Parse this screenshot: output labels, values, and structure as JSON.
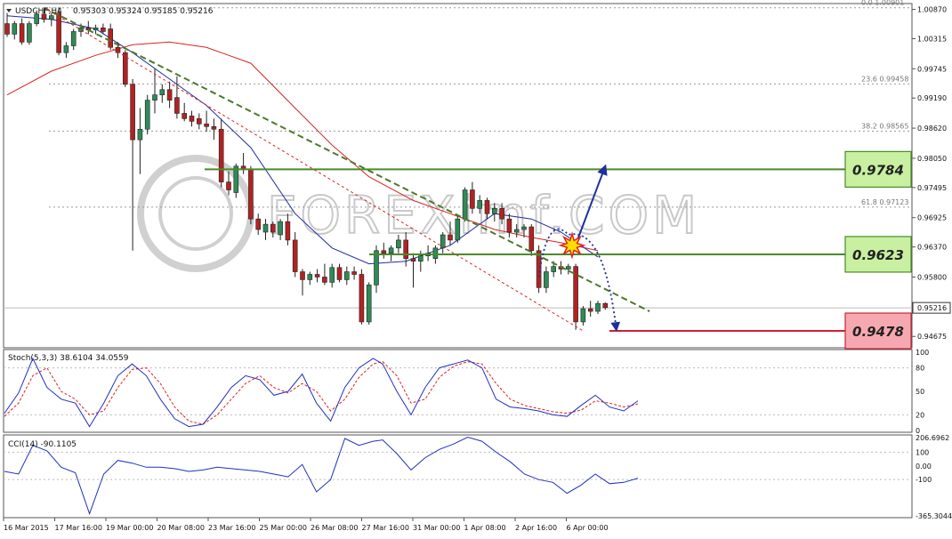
{
  "header": {
    "symbol": "USDCHF,H4",
    "ohlc": "0.95303 0.95324 0.95185 0.95216"
  },
  "colors": {
    "background": "#ffffff",
    "bull_candle": "#2e8b57",
    "bear_candle": "#b22222",
    "ma_fast": "#1f2f9e",
    "ma_slow": "#dd2222",
    "trendline": "#4a7a2a",
    "level_green": "#4a8a2a",
    "level_red": "#cc2233",
    "label_green_fill": "#c8f0a0",
    "label_red_fill": "#f6a8b0",
    "forecast_arrow": "#1d2f9c",
    "stoch_main": "#2030c0",
    "stoch_signal": "#dd2222",
    "cci_line": "#2030c0",
    "grid": "#bbbbbb",
    "watermark": "#999999"
  },
  "price_axis": {
    "ticks": [
      "1.00870",
      "1.00315",
      "0.99745",
      "0.99190",
      "0.98620",
      "0.98050",
      "0.97495",
      "0.96925",
      "0.96370",
      "0.95800",
      "0.95216",
      "0.94675"
    ],
    "current_price": "0.95216",
    "current_value": 0.95216
  },
  "fib_levels": [
    {
      "label": "0.0  1.00901",
      "value": 1.00901
    },
    {
      "label": "23.6  0.99458",
      "value": 0.99458
    },
    {
      "label": "38.2  0.98565",
      "value": 0.98565
    },
    {
      "label": "61.8  0.97123",
      "value": 0.97123
    }
  ],
  "levels": [
    {
      "label": "0.9784",
      "value": 0.9784,
      "kind": "resistance"
    },
    {
      "label": "0.9623",
      "value": 0.9623,
      "kind": "pivot"
    },
    {
      "label": "0.9478",
      "value": 0.9478,
      "kind": "support"
    }
  ],
  "time_axis": {
    "labels": [
      "16 Mar 2015",
      "17 Mar 16:00",
      "19 Mar 00:00",
      "20 Mar 08:00",
      "23 Mar 16:00",
      "25 Mar 00:00",
      "26 Mar 08:00",
      "27 Mar 16:00",
      "31 Mar 00:00",
      "1 Apr 08:00",
      "2 Apr 16:00",
      "6 Apr 00:00"
    ]
  },
  "watermark": {
    "text": "FOREXimf.COM"
  },
  "stoch": {
    "title": "Stoch(5,3,3) 38.6104 34.0559",
    "ticks": [
      "100",
      "80",
      "50",
      "20",
      "0"
    ]
  },
  "cci": {
    "title": "CCI(14) -90.1105",
    "ticks": [
      "206.6962",
      "100",
      "0.00",
      "-100",
      "-365.3044"
    ]
  },
  "chart_data": {
    "type": "candlestick",
    "title": "USDCHF,H4",
    "symbol": "USDCHF",
    "timeframe": "H4",
    "ylim": [
      0.9446,
      1.0098
    ],
    "x_labels": [
      "16 Mar 2015",
      "17 Mar 16:00",
      "19 Mar 00:00",
      "20 Mar 08:00",
      "23 Mar 16:00",
      "25 Mar 00:00",
      "26 Mar 08:00",
      "27 Mar 16:00",
      "31 Mar 00:00",
      "1 Apr 08:00",
      "2 Apr 16:00",
      "6 Apr 00:00"
    ],
    "candles": [
      [
        1.006,
        1.008,
        1.0035,
        1.004
      ],
      [
        1.004,
        1.0065,
        1.003,
        1.006
      ],
      [
        1.006,
        1.007,
        1.002,
        1.0025
      ],
      [
        1.0025,
        1.0065,
        1.002,
        1.006
      ],
      [
        1.006,
        1.0085,
        1.0055,
        1.0078
      ],
      [
        1.0078,
        1.009,
        1.0062,
        1.0068
      ],
      [
        1.0068,
        1.008,
        1.0055,
        1.0075
      ],
      [
        1.008,
        1.009,
        1.0,
        1.0005
      ],
      [
        1.0005,
        1.0025,
        0.9995,
        1.0018
      ],
      [
        1.0018,
        1.005,
        1.001,
        1.0045
      ],
      [
        1.0045,
        1.006,
        1.0035,
        1.0052
      ],
      [
        1.0052,
        1.0065,
        1.004,
        1.0048
      ],
      [
        1.0048,
        1.0058,
        1.004,
        1.0052
      ],
      [
        1.0052,
        1.006,
        1.004,
        1.0045
      ],
      [
        1.005,
        1.006,
        1.001,
        1.0015
      ],
      [
        1.0015,
        1.0025,
        0.9995,
        1.0005
      ],
      [
        1.0005,
        1.001,
        0.994,
        0.9945
      ],
      [
        0.9945,
        0.9955,
        0.963,
        0.984
      ],
      [
        0.984,
        0.99,
        0.9775,
        0.986
      ],
      [
        0.986,
        0.9925,
        0.985,
        0.9915
      ],
      [
        0.9915,
        0.9975,
        0.989,
        0.9925
      ],
      [
        0.9925,
        0.9945,
        0.991,
        0.9935
      ],
      [
        0.9935,
        0.995,
        0.99,
        0.9915
      ],
      [
        0.992,
        0.996,
        0.988,
        0.989
      ],
      [
        0.989,
        0.991,
        0.9875,
        0.988
      ],
      [
        0.9885,
        0.9895,
        0.9865,
        0.9875
      ],
      [
        0.988,
        0.989,
        0.986,
        0.987
      ],
      [
        0.987,
        0.9895,
        0.9855,
        0.9865
      ],
      [
        0.9865,
        0.988,
        0.984,
        0.986
      ],
      [
        0.986,
        0.988,
        0.975,
        0.976
      ],
      [
        0.976,
        0.978,
        0.9735,
        0.9745
      ],
      [
        0.974,
        0.9795,
        0.973,
        0.979
      ],
      [
        0.979,
        0.9815,
        0.9775,
        0.9785
      ],
      [
        0.9785,
        0.979,
        0.968,
        0.969
      ],
      [
        0.969,
        0.97,
        0.966,
        0.967
      ],
      [
        0.9665,
        0.969,
        0.965,
        0.968
      ],
      [
        0.968,
        0.9685,
        0.9655,
        0.9665
      ],
      [
        0.966,
        0.969,
        0.965,
        0.9685
      ],
      [
        0.9685,
        0.97,
        0.964,
        0.965
      ],
      [
        0.965,
        0.9665,
        0.958,
        0.959
      ],
      [
        0.959,
        0.9595,
        0.9545,
        0.9575
      ],
      [
        0.9575,
        0.959,
        0.9565,
        0.9585
      ],
      [
        0.9585,
        0.9595,
        0.957,
        0.958
      ],
      [
        0.958,
        0.9605,
        0.9565,
        0.957
      ],
      [
        0.957,
        0.9605,
        0.956,
        0.9598
      ],
      [
        0.9598,
        0.9605,
        0.957,
        0.9575
      ],
      [
        0.9575,
        0.96,
        0.9565,
        0.959
      ],
      [
        0.959,
        0.96,
        0.9575,
        0.9585
      ],
      [
        0.9585,
        0.9595,
        0.949,
        0.9495
      ],
      [
        0.9495,
        0.957,
        0.949,
        0.9565
      ],
      [
        0.9565,
        0.964,
        0.955,
        0.963
      ],
      [
        0.963,
        0.9645,
        0.9615,
        0.9625
      ],
      [
        0.9625,
        0.964,
        0.961,
        0.9635
      ],
      [
        0.9635,
        0.966,
        0.9625,
        0.965
      ],
      [
        0.965,
        0.9665,
        0.96,
        0.9615
      ],
      [
        0.9615,
        0.9625,
        0.956,
        0.961
      ],
      [
        0.961,
        0.963,
        0.959,
        0.962
      ],
      [
        0.962,
        0.964,
        0.961,
        0.9625
      ],
      [
        0.9615,
        0.964,
        0.9605,
        0.9635
      ],
      [
        0.9635,
        0.9665,
        0.9625,
        0.966
      ],
      [
        0.966,
        0.9685,
        0.964,
        0.965
      ],
      [
        0.965,
        0.9695,
        0.9645,
        0.969
      ],
      [
        0.969,
        0.975,
        0.9685,
        0.9745
      ],
      [
        0.9745,
        0.976,
        0.97,
        0.971
      ],
      [
        0.971,
        0.9735,
        0.97,
        0.9725
      ],
      [
        0.9725,
        0.973,
        0.969,
        0.97
      ],
      [
        0.97,
        0.972,
        0.9685,
        0.971
      ],
      [
        0.971,
        0.972,
        0.968,
        0.969
      ],
      [
        0.969,
        0.97,
        0.9655,
        0.9665
      ],
      [
        0.9665,
        0.968,
        0.9655,
        0.967
      ],
      [
        0.967,
        0.968,
        0.9655,
        0.9675
      ],
      [
        0.9675,
        0.968,
        0.962,
        0.963
      ],
      [
        0.963,
        0.964,
        0.955,
        0.956
      ],
      [
        0.956,
        0.96,
        0.955,
        0.959
      ],
      [
        0.959,
        0.961,
        0.958,
        0.96
      ],
      [
        0.96,
        0.961,
        0.9585,
        0.9595
      ],
      [
        0.9595,
        0.9605,
        0.9585,
        0.96
      ],
      [
        0.96,
        0.9605,
        0.948,
        0.9495
      ],
      [
        0.9495,
        0.9525,
        0.9488,
        0.952
      ],
      [
        0.952,
        0.9535,
        0.9505,
        0.9515
      ],
      [
        0.9515,
        0.9535,
        0.951,
        0.953
      ],
      [
        0.953,
        0.9532,
        0.9518,
        0.9522
      ]
    ],
    "ma_fast": [
      [
        0,
        1.0075
      ],
      [
        6,
        1.0068
      ],
      [
        12,
        1.005
      ],
      [
        17,
        1.0005
      ],
      [
        22,
        0.9955
      ],
      [
        27,
        0.9905
      ],
      [
        33,
        0.9825
      ],
      [
        39,
        0.97
      ],
      [
        44,
        0.9635
      ],
      [
        49,
        0.9605
      ],
      [
        54,
        0.961
      ],
      [
        60,
        0.964
      ],
      [
        66,
        0.97
      ],
      [
        71,
        0.969
      ],
      [
        75,
        0.9665
      ],
      [
        80,
        0.9618
      ]
    ],
    "ma_slow": [
      [
        0,
        0.9925
      ],
      [
        6,
        0.997
      ],
      [
        12,
        1.0
      ],
      [
        17,
        1.002
      ],
      [
        22,
        1.0025
      ],
      [
        27,
        1.0015
      ],
      [
        33,
        0.9985
      ],
      [
        39,
        0.99
      ],
      [
        44,
        0.983
      ],
      [
        49,
        0.977
      ],
      [
        55,
        0.9725
      ],
      [
        60,
        0.97
      ],
      [
        66,
        0.967
      ],
      [
        71,
        0.9655
      ],
      [
        75,
        0.9645
      ],
      [
        80,
        0.963
      ]
    ],
    "trendlines": [
      {
        "name": "main-down",
        "x": [
          5,
          87
        ],
        "y": [
          1.009,
          0.9515
        ]
      },
      {
        "name": "channel",
        "x": [
          5,
          78
        ],
        "y": [
          1.009,
          0.9478
        ]
      }
    ],
    "stochastic": {
      "main": [
        [
          0,
          22
        ],
        [
          3,
          48
        ],
        [
          6,
          92
        ],
        [
          9,
          55
        ],
        [
          12,
          40
        ],
        [
          15,
          35
        ],
        [
          18,
          5
        ],
        [
          21,
          35
        ],
        [
          24,
          70
        ],
        [
          27,
          85
        ],
        [
          30,
          70
        ],
        [
          33,
          40
        ],
        [
          36,
          15
        ],
        [
          39,
          5
        ],
        [
          42,
          8
        ],
        [
          45,
          30
        ],
        [
          48,
          55
        ],
        [
          51,
          70
        ],
        [
          54,
          65
        ],
        [
          57,
          45
        ],
        [
          60,
          50
        ],
        [
          63,
          72
        ],
        [
          66,
          35
        ],
        [
          69,
          12
        ],
        [
          72,
          55
        ],
        [
          75,
          80
        ],
        [
          78,
          92
        ],
        [
          80,
          85
        ],
        [
          83,
          50
        ],
        [
          86,
          20
        ],
        [
          89,
          55
        ],
        [
          92,
          80
        ],
        [
          95,
          85
        ],
        [
          98,
          90
        ],
        [
          101,
          80
        ],
        [
          104,
          40
        ],
        [
          107,
          30
        ],
        [
          110,
          28
        ],
        [
          113,
          25
        ],
        [
          116,
          20
        ],
        [
          119,
          18
        ],
        [
          122,
          32
        ],
        [
          125,
          45
        ],
        [
          128,
          30
        ],
        [
          131,
          25
        ],
        [
          134,
          38
        ]
      ],
      "signal": [
        [
          0,
          18
        ],
        [
          3,
          35
        ],
        [
          6,
          70
        ],
        [
          9,
          80
        ],
        [
          12,
          50
        ],
        [
          15,
          40
        ],
        [
          18,
          20
        ],
        [
          21,
          25
        ],
        [
          24,
          55
        ],
        [
          27,
          78
        ],
        [
          30,
          80
        ],
        [
          33,
          60
        ],
        [
          36,
          30
        ],
        [
          39,
          12
        ],
        [
          42,
          8
        ],
        [
          45,
          20
        ],
        [
          48,
          40
        ],
        [
          51,
          60
        ],
        [
          54,
          70
        ],
        [
          57,
          55
        ],
        [
          60,
          48
        ],
        [
          63,
          60
        ],
        [
          66,
          50
        ],
        [
          69,
          25
        ],
        [
          72,
          40
        ],
        [
          75,
          68
        ],
        [
          78,
          85
        ],
        [
          80,
          88
        ],
        [
          83,
          70
        ],
        [
          86,
          35
        ],
        [
          89,
          40
        ],
        [
          92,
          68
        ],
        [
          95,
          82
        ],
        [
          98,
          88
        ],
        [
          101,
          85
        ],
        [
          104,
          60
        ],
        [
          107,
          40
        ],
        [
          110,
          32
        ],
        [
          113,
          28
        ],
        [
          116,
          24
        ],
        [
          119,
          22
        ],
        [
          122,
          26
        ],
        [
          125,
          38
        ],
        [
          128,
          35
        ],
        [
          131,
          30
        ],
        [
          134,
          34
        ]
      ]
    },
    "cci": [
      [
        0,
        -40
      ],
      [
        3,
        -60
      ],
      [
        6,
        150
      ],
      [
        9,
        110
      ],
      [
        12,
        -10
      ],
      [
        15,
        -50
      ],
      [
        18,
        -350
      ],
      [
        21,
        -60
      ],
      [
        24,
        40
      ],
      [
        27,
        20
      ],
      [
        30,
        -10
      ],
      [
        33,
        -10
      ],
      [
        36,
        -20
      ],
      [
        39,
        -40
      ],
      [
        42,
        -30
      ],
      [
        45,
        -10
      ],
      [
        48,
        -20
      ],
      [
        51,
        -30
      ],
      [
        54,
        -40
      ],
      [
        57,
        -60
      ],
      [
        60,
        -80
      ],
      [
        63,
        10
      ],
      [
        66,
        -190
      ],
      [
        69,
        -100
      ],
      [
        72,
        200
      ],
      [
        75,
        150
      ],
      [
        78,
        180
      ],
      [
        80,
        190
      ],
      [
        83,
        90
      ],
      [
        86,
        -30
      ],
      [
        89,
        60
      ],
      [
        92,
        120
      ],
      [
        95,
        160
      ],
      [
        98,
        210
      ],
      [
        101,
        180
      ],
      [
        104,
        100
      ],
      [
        107,
        30
      ],
      [
        110,
        -60
      ],
      [
        113,
        -100
      ],
      [
        116,
        -120
      ],
      [
        119,
        -200
      ],
      [
        122,
        -140
      ],
      [
        125,
        -60
      ],
      [
        128,
        -130
      ],
      [
        131,
        -120
      ],
      [
        134,
        -90
      ]
    ],
    "indicator_x_count": 134,
    "forecast": [
      {
        "name": "breakout-up",
        "from": [
          76.5,
          0.9623
        ],
        "to": [
          81,
          0.979
        ]
      },
      {
        "name": "rebound-path",
        "from": [
          72,
          0.958
        ],
        "via": [
          76,
          0.966
        ],
        "to": [
          82.5,
          0.948
        ]
      }
    ]
  }
}
